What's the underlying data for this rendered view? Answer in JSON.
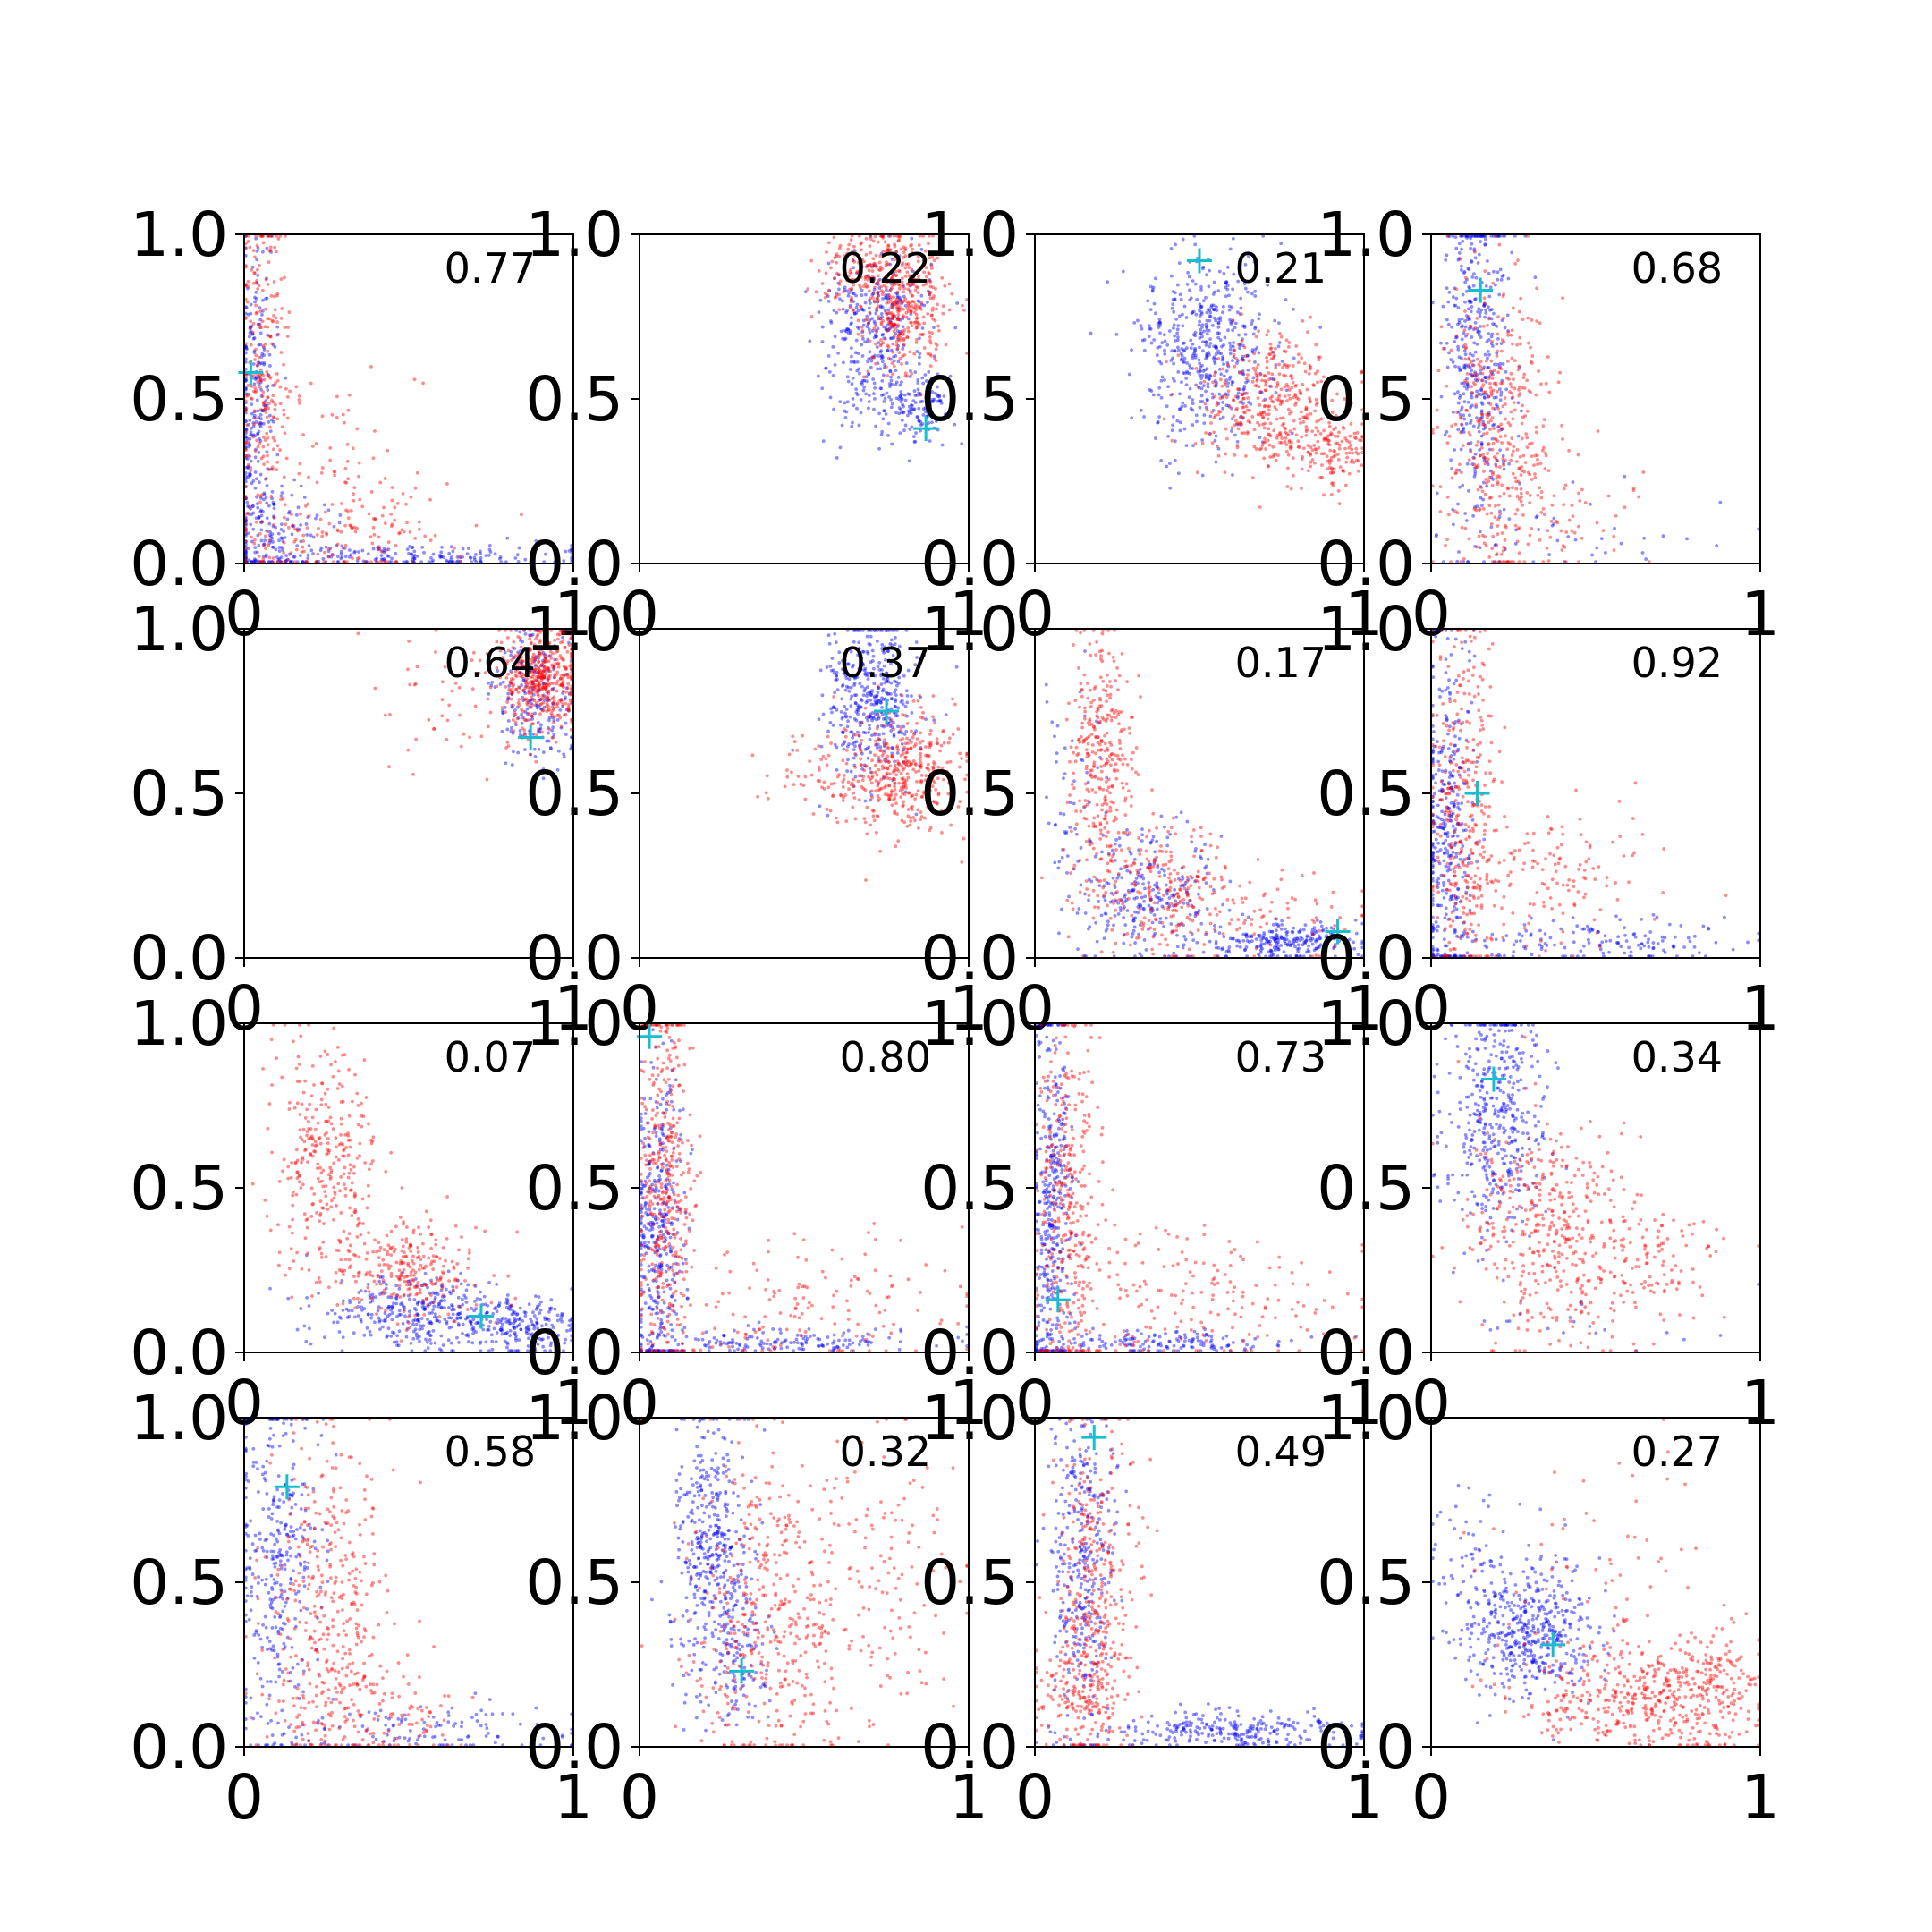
{
  "figure": {
    "rows": 4,
    "cols": 4,
    "colors": {
      "series_a": "#0000ff",
      "series_b": "#ff0000",
      "marker": "#17becf",
      "axes": "#000000",
      "background": "#ffffff"
    }
  },
  "chart_data": [
    {
      "type": "scatter",
      "label": "0.77",
      "xlim": [
        0,
        1
      ],
      "ylim": [
        0,
        1
      ],
      "y_ticks": [
        "0.0",
        "0.5",
        "1.0"
      ],
      "x_ticks": [
        "0",
        "1"
      ],
      "marker": [
        0.02,
        0.58
      ],
      "series": [
        {
          "color": "#0000ff",
          "seed": 11,
          "clusters": [
            {
              "cx": 0.03,
              "cy": 0.45,
              "sx": 0.03,
              "sy": 0.28,
              "n": 260
            },
            {
              "cx": 0.45,
              "cy": 0.02,
              "sx": 0.3,
              "sy": 0.02,
              "n": 200
            },
            {
              "cx": 0.1,
              "cy": 0.1,
              "sx": 0.08,
              "sy": 0.08,
              "n": 120
            }
          ]
        },
        {
          "color": "#ff0000",
          "seed": 12,
          "clusters": [
            {
              "cx": 0.06,
              "cy": 0.6,
              "sx": 0.04,
              "sy": 0.25,
              "n": 240
            },
            {
              "cx": 0.3,
              "cy": 0.1,
              "sx": 0.18,
              "sy": 0.08,
              "n": 160
            },
            {
              "cx": 0.25,
              "cy": 0.35,
              "sx": 0.15,
              "sy": 0.15,
              "n": 60
            }
          ]
        }
      ]
    },
    {
      "type": "scatter",
      "label": "0.22",
      "xlim": [
        0,
        1
      ],
      "ylim": [
        0,
        1
      ],
      "y_ticks": [
        "0.0",
        "0.5",
        "1.0"
      ],
      "x_ticks": [
        "0",
        "1"
      ],
      "marker": [
        0.87,
        0.41
      ],
      "series": [
        {
          "color": "#0000ff",
          "seed": 21,
          "clusters": [
            {
              "cx": 0.72,
              "cy": 0.68,
              "sx": 0.08,
              "sy": 0.14,
              "n": 380
            },
            {
              "cx": 0.85,
              "cy": 0.48,
              "sx": 0.05,
              "sy": 0.05,
              "n": 120
            }
          ]
        },
        {
          "color": "#ff0000",
          "seed": 22,
          "clusters": [
            {
              "cx": 0.8,
              "cy": 0.8,
              "sx": 0.07,
              "sy": 0.1,
              "n": 420
            },
            {
              "cx": 0.65,
              "cy": 0.9,
              "sx": 0.06,
              "sy": 0.06,
              "n": 100
            }
          ]
        }
      ]
    },
    {
      "type": "scatter",
      "label": "0.21",
      "xlim": [
        0,
        1
      ],
      "ylim": [
        0,
        1
      ],
      "y_ticks": [
        "0.0",
        "0.5",
        "1.0"
      ],
      "x_ticks": [
        "0",
        "1"
      ],
      "marker": [
        0.5,
        0.92
      ],
      "series": [
        {
          "color": "#0000ff",
          "seed": 31,
          "clusters": [
            {
              "cx": 0.52,
              "cy": 0.65,
              "sx": 0.1,
              "sy": 0.14,
              "n": 520
            }
          ]
        },
        {
          "color": "#ff0000",
          "seed": 32,
          "clusters": [
            {
              "cx": 0.72,
              "cy": 0.48,
              "sx": 0.12,
              "sy": 0.1,
              "n": 380
            },
            {
              "cx": 0.9,
              "cy": 0.35,
              "sx": 0.06,
              "sy": 0.06,
              "n": 140
            }
          ]
        }
      ]
    },
    {
      "type": "scatter",
      "label": "0.68",
      "xlim": [
        0,
        1
      ],
      "ylim": [
        0,
        1
      ],
      "y_ticks": [
        "0.0",
        "0.5",
        "1.0"
      ],
      "x_ticks": [
        "0",
        "1"
      ],
      "marker": [
        0.15,
        0.83
      ],
      "series": [
        {
          "color": "#0000ff",
          "seed": 41,
          "clusters": [
            {
              "cx": 0.14,
              "cy": 0.6,
              "sx": 0.05,
              "sy": 0.28,
              "n": 420
            },
            {
              "cx": 0.4,
              "cy": 0.08,
              "sx": 0.2,
              "sy": 0.05,
              "n": 40
            }
          ]
        },
        {
          "color": "#ff0000",
          "seed": 42,
          "clusters": [
            {
              "cx": 0.2,
              "cy": 0.4,
              "sx": 0.08,
              "sy": 0.22,
              "n": 400
            },
            {
              "cx": 0.38,
              "cy": 0.15,
              "sx": 0.12,
              "sy": 0.1,
              "n": 80
            }
          ]
        }
      ]
    },
    {
      "type": "scatter",
      "label": "0.64",
      "xlim": [
        0,
        1
      ],
      "ylim": [
        0,
        1
      ],
      "y_ticks": [
        "0.0",
        "0.5",
        "1.0"
      ],
      "x_ticks": [
        "0",
        "1"
      ],
      "marker": [
        0.87,
        0.67
      ],
      "series": [
        {
          "color": "#0000ff",
          "seed": 51,
          "clusters": [
            {
              "cx": 0.88,
              "cy": 0.8,
              "sx": 0.06,
              "sy": 0.1,
              "n": 220
            }
          ]
        },
        {
          "color": "#ff0000",
          "seed": 52,
          "clusters": [
            {
              "cx": 0.9,
              "cy": 0.85,
              "sx": 0.06,
              "sy": 0.08,
              "n": 460
            },
            {
              "cx": 0.65,
              "cy": 0.75,
              "sx": 0.12,
              "sy": 0.1,
              "n": 50
            }
          ]
        }
      ]
    },
    {
      "type": "scatter",
      "label": "0.37",
      "xlim": [
        0,
        1
      ],
      "ylim": [
        0,
        1
      ],
      "y_ticks": [
        "0.0",
        "0.5",
        "1.0"
      ],
      "x_ticks": [
        "0",
        "1"
      ],
      "marker": [
        0.75,
        0.75
      ],
      "series": [
        {
          "color": "#0000ff",
          "seed": 61,
          "clusters": [
            {
              "cx": 0.7,
              "cy": 0.78,
              "sx": 0.08,
              "sy": 0.12,
              "n": 420
            }
          ]
        },
        {
          "color": "#ff0000",
          "seed": 62,
          "clusters": [
            {
              "cx": 0.8,
              "cy": 0.57,
              "sx": 0.09,
              "sy": 0.09,
              "n": 400
            },
            {
              "cx": 0.55,
              "cy": 0.55,
              "sx": 0.08,
              "sy": 0.06,
              "n": 60
            }
          ]
        }
      ]
    },
    {
      "type": "scatter",
      "label": "0.17",
      "xlim": [
        0,
        1
      ],
      "ylim": [
        0,
        1
      ],
      "y_ticks": [
        "0.0",
        "0.5",
        "1.0"
      ],
      "x_ticks": [
        "0",
        "1"
      ],
      "marker": [
        0.92,
        0.08
      ],
      "series": [
        {
          "color": "#0000ff",
          "seed": 71,
          "clusters": [
            {
              "cx": 0.35,
              "cy": 0.2,
              "sx": 0.1,
              "sy": 0.1,
              "n": 260
            },
            {
              "cx": 0.75,
              "cy": 0.05,
              "sx": 0.12,
              "sy": 0.03,
              "n": 240
            },
            {
              "cx": 0.12,
              "cy": 0.45,
              "sx": 0.05,
              "sy": 0.2,
              "n": 60
            }
          ]
        },
        {
          "color": "#ff0000",
          "seed": 72,
          "clusters": [
            {
              "cx": 0.2,
              "cy": 0.6,
              "sx": 0.05,
              "sy": 0.22,
              "n": 320
            },
            {
              "cx": 0.4,
              "cy": 0.2,
              "sx": 0.12,
              "sy": 0.1,
              "n": 240
            },
            {
              "cx": 0.7,
              "cy": 0.15,
              "sx": 0.15,
              "sy": 0.08,
              "n": 60
            }
          ]
        }
      ]
    },
    {
      "type": "scatter",
      "label": "0.92",
      "xlim": [
        0,
        1
      ],
      "ylim": [
        0,
        1
      ],
      "y_ticks": [
        "0.0",
        "0.5",
        "1.0"
      ],
      "x_ticks": [
        "0",
        "1"
      ],
      "marker": [
        0.14,
        0.5
      ],
      "series": [
        {
          "color": "#0000ff",
          "seed": 81,
          "clusters": [
            {
              "cx": 0.05,
              "cy": 0.4,
              "sx": 0.04,
              "sy": 0.28,
              "n": 360
            },
            {
              "cx": 0.45,
              "cy": 0.05,
              "sx": 0.25,
              "sy": 0.04,
              "n": 160
            }
          ]
        },
        {
          "color": "#ff0000",
          "seed": 82,
          "clusters": [
            {
              "cx": 0.1,
              "cy": 0.45,
              "sx": 0.05,
              "sy": 0.3,
              "n": 320
            },
            {
              "cx": 0.35,
              "cy": 0.25,
              "sx": 0.15,
              "sy": 0.12,
              "n": 140
            }
          ]
        }
      ]
    },
    {
      "type": "scatter",
      "label": "0.07",
      "xlim": [
        0,
        1
      ],
      "ylim": [
        0,
        1
      ],
      "y_ticks": [
        "0.0",
        "0.5",
        "1.0"
      ],
      "x_ticks": [
        "0",
        "1"
      ],
      "marker": [
        0.72,
        0.11
      ],
      "series": [
        {
          "color": "#0000ff",
          "seed": 91,
          "clusters": [
            {
              "cx": 0.55,
              "cy": 0.12,
              "sx": 0.15,
              "sy": 0.06,
              "n": 360
            },
            {
              "cx": 0.85,
              "cy": 0.08,
              "sx": 0.08,
              "sy": 0.04,
              "n": 180
            }
          ]
        },
        {
          "color": "#ff0000",
          "seed": 92,
          "clusters": [
            {
              "cx": 0.25,
              "cy": 0.6,
              "sx": 0.08,
              "sy": 0.18,
              "n": 300
            },
            {
              "cx": 0.5,
              "cy": 0.25,
              "sx": 0.12,
              "sy": 0.08,
              "n": 260
            }
          ]
        }
      ]
    },
    {
      "type": "scatter",
      "label": "0.80",
      "xlim": [
        0,
        1
      ],
      "ylim": [
        0,
        1
      ],
      "y_ticks": [
        "0.0",
        "0.5",
        "1.0"
      ],
      "x_ticks": [
        "0",
        "1"
      ],
      "marker": [
        0.03,
        0.96
      ],
      "series": [
        {
          "color": "#0000ff",
          "seed": 101,
          "clusters": [
            {
              "cx": 0.06,
              "cy": 0.35,
              "sx": 0.04,
              "sy": 0.25,
              "n": 380
            },
            {
              "cx": 0.4,
              "cy": 0.03,
              "sx": 0.25,
              "sy": 0.02,
              "n": 160
            }
          ]
        },
        {
          "color": "#ff0000",
          "seed": 102,
          "clusters": [
            {
              "cx": 0.08,
              "cy": 0.5,
              "sx": 0.04,
              "sy": 0.3,
              "n": 380
            },
            {
              "cx": 0.45,
              "cy": 0.15,
              "sx": 0.25,
              "sy": 0.1,
              "n": 160
            }
          ]
        }
      ]
    },
    {
      "type": "scatter",
      "label": "0.73",
      "xlim": [
        0,
        1
      ],
      "ylim": [
        0,
        1
      ],
      "y_ticks": [
        "0.0",
        "0.5",
        "1.0"
      ],
      "x_ticks": [
        "0",
        "1"
      ],
      "marker": [
        0.07,
        0.16
      ],
      "series": [
        {
          "color": "#0000ff",
          "seed": 111,
          "clusters": [
            {
              "cx": 0.05,
              "cy": 0.45,
              "sx": 0.03,
              "sy": 0.3,
              "n": 380
            },
            {
              "cx": 0.35,
              "cy": 0.03,
              "sx": 0.2,
              "sy": 0.02,
              "n": 160
            }
          ]
        },
        {
          "color": "#ff0000",
          "seed": 112,
          "clusters": [
            {
              "cx": 0.1,
              "cy": 0.45,
              "sx": 0.05,
              "sy": 0.3,
              "n": 320
            },
            {
              "cx": 0.45,
              "cy": 0.15,
              "sx": 0.25,
              "sy": 0.12,
              "n": 200
            }
          ]
        }
      ]
    },
    {
      "type": "scatter",
      "label": "0.34",
      "xlim": [
        0,
        1
      ],
      "ylim": [
        0,
        1
      ],
      "y_ticks": [
        "0.0",
        "0.5",
        "1.0"
      ],
      "x_ticks": [
        "0",
        "1"
      ],
      "marker": [
        0.19,
        0.83
      ],
      "series": [
        {
          "color": "#0000ff",
          "seed": 121,
          "clusters": [
            {
              "cx": 0.2,
              "cy": 0.72,
              "sx": 0.07,
              "sy": 0.18,
              "n": 420
            },
            {
              "cx": 0.5,
              "cy": 0.1,
              "sx": 0.25,
              "sy": 0.06,
              "n": 20
            }
          ]
        },
        {
          "color": "#ff0000",
          "seed": 122,
          "clusters": [
            {
              "cx": 0.35,
              "cy": 0.4,
              "sx": 0.12,
              "sy": 0.16,
              "n": 360
            },
            {
              "cx": 0.6,
              "cy": 0.25,
              "sx": 0.15,
              "sy": 0.1,
              "n": 160
            }
          ]
        }
      ]
    },
    {
      "type": "scatter",
      "label": "0.58",
      "xlim": [
        0,
        1
      ],
      "ylim": [
        0,
        1
      ],
      "y_ticks": [
        "0.0",
        "0.5",
        "1.0"
      ],
      "x_ticks": [
        "0",
        "1"
      ],
      "marker": [
        0.13,
        0.79
      ],
      "series": [
        {
          "color": "#0000ff",
          "seed": 131,
          "clusters": [
            {
              "cx": 0.1,
              "cy": 0.55,
              "sx": 0.06,
              "sy": 0.25,
              "n": 340
            },
            {
              "cx": 0.55,
              "cy": 0.05,
              "sx": 0.25,
              "sy": 0.04,
              "n": 120
            }
          ]
        },
        {
          "color": "#ff0000",
          "seed": 132,
          "clusters": [
            {
              "cx": 0.25,
              "cy": 0.45,
              "sx": 0.1,
              "sy": 0.25,
              "n": 360
            },
            {
              "cx": 0.4,
              "cy": 0.1,
              "sx": 0.15,
              "sy": 0.08,
              "n": 120
            }
          ]
        }
      ]
    },
    {
      "type": "scatter",
      "label": "0.32",
      "xlim": [
        0,
        1
      ],
      "ylim": [
        0,
        1
      ],
      "y_ticks": [
        "0.0",
        "0.5",
        "1.0"
      ],
      "x_ticks": [
        "0",
        "1"
      ],
      "marker": [
        0.31,
        0.23
      ],
      "series": [
        {
          "color": "#0000ff",
          "seed": 141,
          "clusters": [
            {
              "cx": 0.22,
              "cy": 0.6,
              "sx": 0.06,
              "sy": 0.2,
              "n": 420
            },
            {
              "cx": 0.3,
              "cy": 0.25,
              "sx": 0.06,
              "sy": 0.1,
              "n": 100
            }
          ]
        },
        {
          "color": "#ff0000",
          "seed": 142,
          "clusters": [
            {
              "cx": 0.4,
              "cy": 0.4,
              "sx": 0.13,
              "sy": 0.25,
              "n": 420
            },
            {
              "cx": 0.75,
              "cy": 0.5,
              "sx": 0.12,
              "sy": 0.25,
              "n": 120
            }
          ]
        }
      ]
    },
    {
      "type": "scatter",
      "label": "0.49",
      "xlim": [
        0,
        1
      ],
      "ylim": [
        0,
        1
      ],
      "y_ticks": [
        "0.0",
        "0.5",
        "1.0"
      ],
      "x_ticks": [
        "0",
        "1"
      ],
      "marker": [
        0.18,
        0.94
      ],
      "series": [
        {
          "color": "#0000ff",
          "seed": 151,
          "clusters": [
            {
              "cx": 0.14,
              "cy": 0.55,
              "sx": 0.05,
              "sy": 0.25,
              "n": 340
            },
            {
              "cx": 0.6,
              "cy": 0.05,
              "sx": 0.2,
              "sy": 0.03,
              "n": 260
            }
          ]
        },
        {
          "color": "#ff0000",
          "seed": 152,
          "clusters": [
            {
              "cx": 0.18,
              "cy": 0.45,
              "sx": 0.06,
              "sy": 0.28,
              "n": 360
            },
            {
              "cx": 0.12,
              "cy": 0.15,
              "sx": 0.06,
              "sy": 0.08,
              "n": 120
            }
          ]
        }
      ]
    },
    {
      "type": "scatter",
      "label": "0.27",
      "xlim": [
        0,
        1
      ],
      "ylim": [
        0,
        1
      ],
      "y_ticks": [
        "0.0",
        "0.5",
        "1.0"
      ],
      "x_ticks": [
        "0",
        "1"
      ],
      "marker": [
        0.37,
        0.31
      ],
      "series": [
        {
          "color": "#0000ff",
          "seed": 161,
          "clusters": [
            {
              "cx": 0.3,
              "cy": 0.35,
              "sx": 0.1,
              "sy": 0.1,
              "n": 440
            },
            {
              "cx": 0.15,
              "cy": 0.55,
              "sx": 0.08,
              "sy": 0.15,
              "n": 80
            }
          ]
        },
        {
          "color": "#ff0000",
          "seed": 162,
          "clusters": [
            {
              "cx": 0.6,
              "cy": 0.15,
              "sx": 0.15,
              "sy": 0.08,
              "n": 360
            },
            {
              "cx": 0.85,
              "cy": 0.18,
              "sx": 0.08,
              "sy": 0.1,
              "n": 180
            },
            {
              "cx": 0.5,
              "cy": 0.55,
              "sx": 0.18,
              "sy": 0.2,
              "n": 60
            }
          ]
        }
      ]
    }
  ]
}
